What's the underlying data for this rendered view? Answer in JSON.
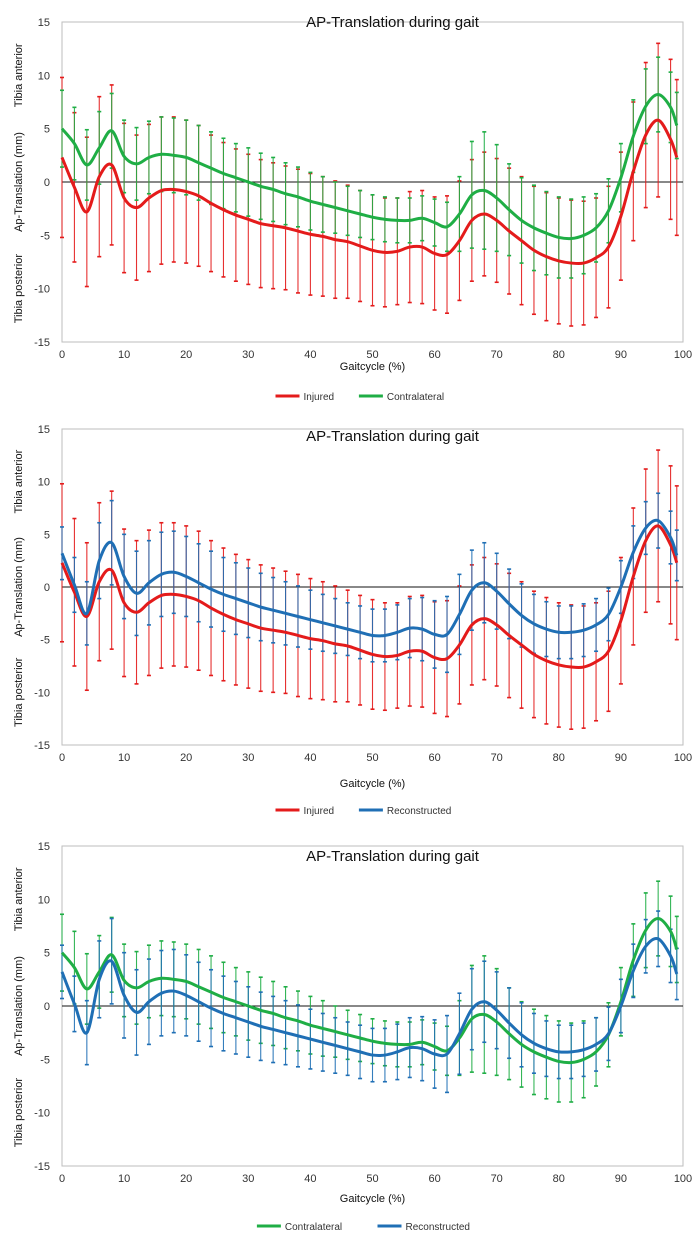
{
  "colors": {
    "injured": "#e41b1b",
    "contralateral": "#1fae45",
    "reconstructed": "#1f6fb5"
  },
  "chart_data": [
    {
      "type": "line",
      "title": "AP-Translation during gait",
      "xlabel": "Gaitcycle (%)",
      "ylabel": "Ap-Translation (mm)",
      "ylabel_top": "Tibia anterior",
      "ylabel_bottom": "Tibia posterior",
      "xlim": [
        0,
        100
      ],
      "ylim": [
        -15,
        15
      ],
      "xticks": [
        "0",
        "10",
        "20",
        "30",
        "40",
        "50",
        "60",
        "70",
        "80",
        "90",
        "100"
      ],
      "yticks": [
        "15",
        "10",
        "5",
        "0",
        "-5",
        "-10",
        "-15"
      ],
      "x": [
        0,
        2,
        4,
        6,
        8,
        10,
        12,
        14,
        16,
        18,
        20,
        22,
        24,
        26,
        28,
        30,
        32,
        34,
        36,
        38,
        40,
        42,
        44,
        46,
        48,
        50,
        52,
        54,
        56,
        58,
        60,
        62,
        64,
        66,
        68,
        70,
        72,
        74,
        76,
        78,
        80,
        82,
        84,
        86,
        88,
        90,
        92,
        94,
        96,
        98,
        99
      ],
      "series": [
        {
          "name": "Injured",
          "color_key": "injured",
          "mean": [
            2.3,
            -0.5,
            -2.8,
            0.5,
            1.6,
            -1.5,
            -2.4,
            -1.5,
            -0.8,
            -0.7,
            -0.9,
            -1.3,
            -2.0,
            -2.6,
            -3.1,
            -3.5,
            -3.9,
            -4.1,
            -4.3,
            -4.6,
            -4.9,
            -5.1,
            -5.4,
            -5.6,
            -6.0,
            -6.4,
            -6.6,
            -6.5,
            -6.1,
            -6.1,
            -6.7,
            -6.8,
            -5.5,
            -3.6,
            -3.0,
            -3.6,
            -4.6,
            -5.5,
            -6.4,
            -7.0,
            -7.4,
            -7.6,
            -7.6,
            -7.1,
            -6.1,
            -3.2,
            1.0,
            4.4,
            5.8,
            4.0,
            2.3
          ],
          "sd": [
            7.5,
            7.0,
            7.0,
            7.5,
            7.5,
            7.0,
            6.8,
            6.9,
            6.9,
            6.8,
            6.7,
            6.6,
            6.4,
            6.3,
            6.2,
            6.1,
            6.0,
            5.9,
            5.8,
            5.8,
            5.7,
            5.6,
            5.5,
            5.3,
            5.2,
            5.2,
            5.1,
            5.0,
            5.2,
            5.3,
            5.3,
            5.5,
            5.6,
            5.7,
            5.8,
            5.8,
            5.9,
            6.0,
            6.0,
            6.0,
            5.9,
            5.9,
            5.8,
            5.6,
            5.7,
            6.0,
            6.5,
            6.8,
            7.2,
            7.5,
            7.3
          ]
        },
        {
          "name": "Contralateral",
          "color_key": "contralateral",
          "mean": [
            5.0,
            3.6,
            1.6,
            3.2,
            4.8,
            2.4,
            1.7,
            2.3,
            2.6,
            2.5,
            2.3,
            1.8,
            1.3,
            0.8,
            0.4,
            0.0,
            -0.4,
            -0.7,
            -1.1,
            -1.4,
            -1.8,
            -2.1,
            -2.4,
            -2.7,
            -3.0,
            -3.3,
            -3.5,
            -3.6,
            -3.6,
            -3.4,
            -3.8,
            -4.2,
            -3.0,
            -1.2,
            -0.8,
            -1.5,
            -2.6,
            -3.6,
            -4.3,
            -4.8,
            -5.2,
            -5.3,
            -5.0,
            -4.3,
            -2.7,
            0.4,
            4.3,
            7.1,
            8.2,
            7.0,
            5.3
          ],
          "sd": [
            3.6,
            3.4,
            3.3,
            3.4,
            3.5,
            3.4,
            3.4,
            3.4,
            3.5,
            3.5,
            3.5,
            3.5,
            3.4,
            3.3,
            3.2,
            3.2,
            3.1,
            3.0,
            2.9,
            2.8,
            2.7,
            2.6,
            2.4,
            2.3,
            2.2,
            2.1,
            2.1,
            2.1,
            2.1,
            2.1,
            2.2,
            2.3,
            3.5,
            5.0,
            5.5,
            5.0,
            4.3,
            4.0,
            4.0,
            3.9,
            3.8,
            3.7,
            3.6,
            3.2,
            3.0,
            3.2,
            3.4,
            3.5,
            3.5,
            3.3,
            3.1
          ]
        }
      ],
      "legend": [
        "Injured",
        "Contralateral"
      ],
      "legend_position": "bottom-center"
    },
    {
      "type": "line",
      "title": "AP-Translation during gait",
      "xlabel": "Gaitcycle (%)",
      "ylabel": "Ap-Translation (mm)",
      "ylabel_top": "Tibia anterior",
      "ylabel_bottom": "Tibia posterior",
      "xlim": [
        0,
        100
      ],
      "ylim": [
        -15,
        15
      ],
      "xticks": [
        "0",
        "10",
        "20",
        "30",
        "40",
        "50",
        "60",
        "70",
        "80",
        "90",
        "100"
      ],
      "yticks": [
        "15",
        "10",
        "5",
        "0",
        "-5",
        "-10",
        "-15"
      ],
      "x": [
        0,
        2,
        4,
        6,
        8,
        10,
        12,
        14,
        16,
        18,
        20,
        22,
        24,
        26,
        28,
        30,
        32,
        34,
        36,
        38,
        40,
        42,
        44,
        46,
        48,
        50,
        52,
        54,
        56,
        58,
        60,
        62,
        64,
        66,
        68,
        70,
        72,
        74,
        76,
        78,
        80,
        82,
        84,
        86,
        88,
        90,
        92,
        94,
        96,
        98,
        99
      ],
      "series": [
        {
          "name": "Injured",
          "color_key": "injured",
          "mean": [
            2.3,
            -0.5,
            -2.8,
            0.5,
            1.6,
            -1.5,
            -2.4,
            -1.5,
            -0.8,
            -0.7,
            -0.9,
            -1.3,
            -2.0,
            -2.6,
            -3.1,
            -3.5,
            -3.9,
            -4.1,
            -4.3,
            -4.6,
            -4.9,
            -5.1,
            -5.4,
            -5.6,
            -6.0,
            -6.4,
            -6.6,
            -6.5,
            -6.1,
            -6.1,
            -6.7,
            -6.8,
            -5.5,
            -3.6,
            -3.0,
            -3.6,
            -4.6,
            -5.5,
            -6.4,
            -7.0,
            -7.4,
            -7.6,
            -7.6,
            -7.1,
            -6.1,
            -3.2,
            1.0,
            4.4,
            5.8,
            4.0,
            2.3
          ],
          "sd": [
            7.5,
            7.0,
            7.0,
            7.5,
            7.5,
            7.0,
            6.8,
            6.9,
            6.9,
            6.8,
            6.7,
            6.6,
            6.4,
            6.3,
            6.2,
            6.1,
            6.0,
            5.9,
            5.8,
            5.8,
            5.7,
            5.6,
            5.5,
            5.3,
            5.2,
            5.2,
            5.1,
            5.0,
            5.2,
            5.3,
            5.3,
            5.5,
            5.6,
            5.7,
            5.8,
            5.8,
            5.9,
            6.0,
            6.0,
            6.0,
            5.9,
            5.9,
            5.8,
            5.6,
            5.7,
            6.0,
            6.5,
            6.8,
            7.2,
            7.5,
            7.3
          ]
        },
        {
          "name": "Reconstructed",
          "color_key": "reconstructed",
          "mean": [
            3.2,
            0.2,
            -2.5,
            2.5,
            4.2,
            1.0,
            -0.6,
            0.4,
            1.2,
            1.4,
            1.0,
            0.4,
            -0.2,
            -0.7,
            -1.1,
            -1.5,
            -1.9,
            -2.2,
            -2.5,
            -2.8,
            -3.1,
            -3.4,
            -3.7,
            -4.0,
            -4.3,
            -4.6,
            -4.6,
            -4.3,
            -3.9,
            -4.0,
            -4.5,
            -4.5,
            -2.6,
            -0.3,
            0.4,
            -0.4,
            -1.6,
            -2.7,
            -3.5,
            -4.0,
            -4.3,
            -4.3,
            -4.1,
            -3.6,
            -2.6,
            0.0,
            3.3,
            5.6,
            6.3,
            4.7,
            3.0
          ],
          "sd": [
            2.5,
            2.6,
            3.0,
            3.6,
            4.0,
            4.0,
            4.0,
            4.0,
            4.0,
            3.9,
            3.8,
            3.7,
            3.6,
            3.5,
            3.4,
            3.3,
            3.2,
            3.1,
            3.0,
            2.9,
            2.8,
            2.7,
            2.6,
            2.5,
            2.5,
            2.5,
            2.5,
            2.6,
            2.8,
            3.0,
            3.2,
            3.6,
            3.8,
            3.8,
            3.8,
            3.6,
            3.3,
            3.0,
            2.8,
            2.6,
            2.5,
            2.5,
            2.5,
            2.5,
            2.5,
            2.5,
            2.5,
            2.5,
            2.6,
            2.5,
            2.4
          ]
        }
      ],
      "legend": [
        "Injured",
        "Reconstructed"
      ],
      "legend_position": "bottom-center"
    },
    {
      "type": "line",
      "title": "AP-Translation during gait",
      "xlabel": "Gaitcycle (%)",
      "ylabel": "Ap-Translation (mm)",
      "ylabel_top": "Tibia anterior",
      "ylabel_bottom": "Tibia posterior",
      "xlim": [
        0,
        100
      ],
      "ylim": [
        -15,
        15
      ],
      "xticks": [
        "0",
        "10",
        "20",
        "30",
        "40",
        "50",
        "60",
        "70",
        "80",
        "90",
        "100"
      ],
      "yticks": [
        "15",
        "10",
        "5",
        "0",
        "-5",
        "-10",
        "-15"
      ],
      "x": [
        0,
        2,
        4,
        6,
        8,
        10,
        12,
        14,
        16,
        18,
        20,
        22,
        24,
        26,
        28,
        30,
        32,
        34,
        36,
        38,
        40,
        42,
        44,
        46,
        48,
        50,
        52,
        54,
        56,
        58,
        60,
        62,
        64,
        66,
        68,
        70,
        72,
        74,
        76,
        78,
        80,
        82,
        84,
        86,
        88,
        90,
        92,
        94,
        96,
        98,
        99
      ],
      "series": [
        {
          "name": "Contralateral",
          "color_key": "contralateral",
          "mean": [
            5.0,
            3.6,
            1.6,
            3.2,
            4.8,
            2.4,
            1.7,
            2.3,
            2.6,
            2.5,
            2.3,
            1.8,
            1.3,
            0.8,
            0.4,
            0.0,
            -0.4,
            -0.7,
            -1.1,
            -1.4,
            -1.8,
            -2.1,
            -2.4,
            -2.7,
            -3.0,
            -3.3,
            -3.5,
            -3.6,
            -3.6,
            -3.4,
            -3.8,
            -4.2,
            -3.0,
            -1.2,
            -0.8,
            -1.5,
            -2.6,
            -3.6,
            -4.3,
            -4.8,
            -5.2,
            -5.3,
            -5.0,
            -4.3,
            -2.7,
            0.4,
            4.3,
            7.1,
            8.2,
            7.0,
            5.3
          ],
          "sd": [
            3.6,
            3.4,
            3.3,
            3.4,
            3.5,
            3.4,
            3.4,
            3.4,
            3.5,
            3.5,
            3.5,
            3.5,
            3.4,
            3.3,
            3.2,
            3.2,
            3.1,
            3.0,
            2.9,
            2.8,
            2.7,
            2.6,
            2.4,
            2.3,
            2.2,
            2.1,
            2.1,
            2.1,
            2.1,
            2.1,
            2.2,
            2.3,
            3.5,
            5.0,
            5.5,
            5.0,
            4.3,
            4.0,
            4.0,
            3.9,
            3.8,
            3.7,
            3.6,
            3.2,
            3.0,
            3.2,
            3.4,
            3.5,
            3.5,
            3.3,
            3.1
          ]
        },
        {
          "name": "Reconstructed",
          "color_key": "reconstructed",
          "mean": [
            3.2,
            0.2,
            -2.5,
            2.5,
            4.2,
            1.0,
            -0.6,
            0.4,
            1.2,
            1.4,
            1.0,
            0.4,
            -0.2,
            -0.7,
            -1.1,
            -1.5,
            -1.9,
            -2.2,
            -2.5,
            -2.8,
            -3.1,
            -3.4,
            -3.7,
            -4.0,
            -4.3,
            -4.6,
            -4.6,
            -4.3,
            -3.9,
            -4.0,
            -4.5,
            -4.5,
            -2.6,
            -0.3,
            0.4,
            -0.4,
            -1.6,
            -2.7,
            -3.5,
            -4.0,
            -4.3,
            -4.3,
            -4.1,
            -3.6,
            -2.6,
            0.0,
            3.3,
            5.6,
            6.3,
            4.7,
            3.0
          ],
          "sd": [
            2.5,
            2.6,
            3.0,
            3.6,
            4.0,
            4.0,
            4.0,
            4.0,
            4.0,
            3.9,
            3.8,
            3.7,
            3.6,
            3.5,
            3.4,
            3.3,
            3.2,
            3.1,
            3.0,
            2.9,
            2.8,
            2.7,
            2.6,
            2.5,
            2.5,
            2.5,
            2.5,
            2.6,
            2.8,
            3.0,
            3.2,
            3.6,
            3.8,
            3.8,
            3.8,
            3.6,
            3.3,
            3.0,
            2.8,
            2.6,
            2.5,
            2.5,
            2.5,
            2.5,
            2.5,
            2.5,
            2.5,
            2.5,
            2.6,
            2.5,
            2.4
          ]
        }
      ],
      "legend": [
        "Contralateral",
        "Reconstructed"
      ],
      "legend_position": "bottom-center"
    }
  ]
}
